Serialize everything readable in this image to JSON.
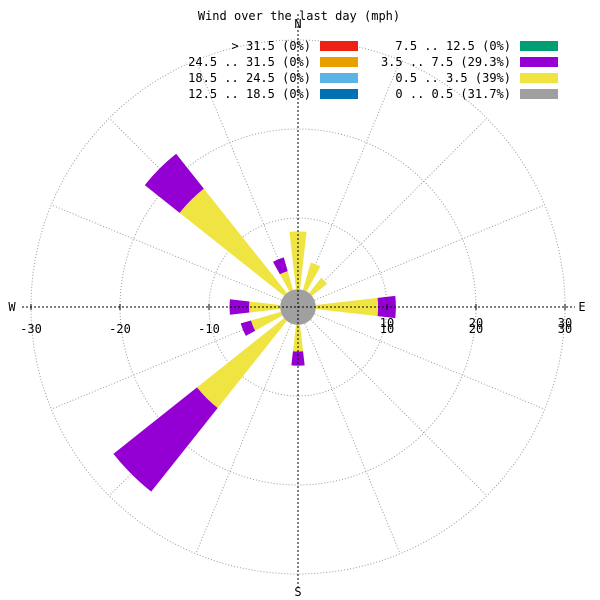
{
  "chart_data": {
    "type": "windrose",
    "title": "Wind over the last day (mph)",
    "compass": {
      "north": "N",
      "east": "E",
      "south": "S",
      "west": "W"
    },
    "r_max": 30,
    "r_grid": [
      10,
      20,
      30
    ],
    "x_ticks": [
      "-30",
      "-20",
      "-10",
      "10",
      "20",
      "30"
    ],
    "grid": true,
    "legend_position": "top-right",
    "calm": {
      "label": "0 .. 0.5 (31.7%)",
      "color": "#a0a0a0",
      "radius": 2
    },
    "legend": [
      {
        "label": "> 31.5 (0%)",
        "color": "#ee2211"
      },
      {
        "label": "24.5 .. 31.5 (0%)",
        "color": "#e8a000"
      },
      {
        "label": "18.5 .. 24.5 (0%)",
        "color": "#5cb4e6"
      },
      {
        "label": "12.5 .. 18.5 (0%)",
        "color": "#0072b2"
      },
      {
        "label": "7.5 .. 12.5 (0%)",
        "color": "#009e73"
      },
      {
        "label": "3.5 .. 7.5 (29.3%)",
        "color": "#9400d3"
      },
      {
        "label": "0.5 .. 3.5 (39%)",
        "color": "#f0e442"
      }
    ],
    "directions_deg": [
      0,
      22.5,
      45,
      67.5,
      90,
      112.5,
      135,
      157.5,
      180,
      202.5,
      225,
      247.5,
      270,
      292.5,
      315,
      337.5
    ],
    "series": [
      {
        "name": "0.5 .. 3.5 (39%)",
        "color": "#f0e442",
        "values": [
          6.5,
          3.2,
          2.2,
          0,
          7.0,
          0,
          0,
          0,
          3.0,
          0,
          12.5,
          3.5,
          3.5,
          0,
          15.0,
          2.2
        ]
      },
      {
        "name": "3.5 .. 7.5 (29.3%)",
        "color": "#9400d3",
        "values": [
          0,
          0,
          0,
          0,
          2.0,
          0,
          0,
          0,
          1.6,
          0,
          12.0,
          1.2,
          2.2,
          0,
          5.0,
          1.6
        ]
      }
    ]
  }
}
